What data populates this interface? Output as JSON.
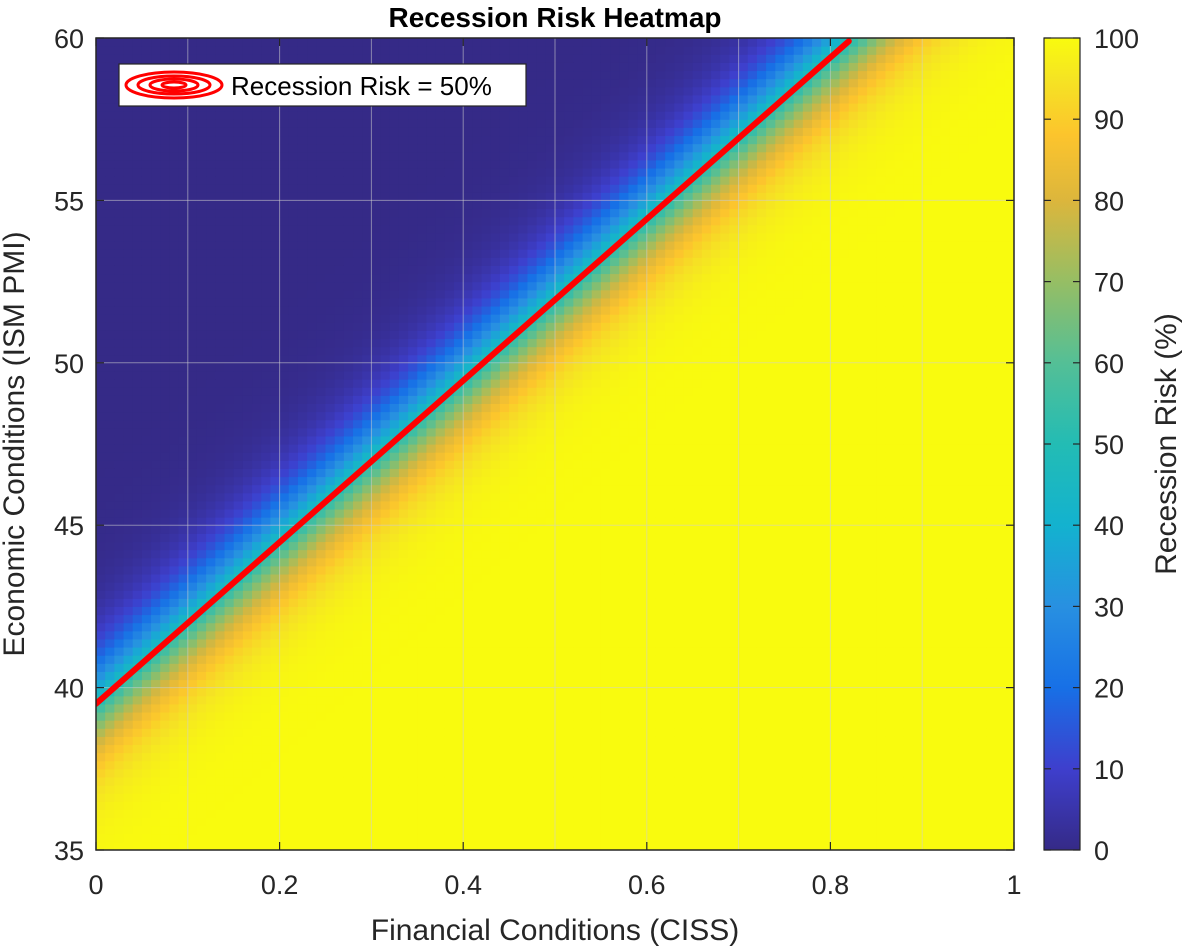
{
  "chart_data": {
    "type": "heatmap",
    "title": "Recession Risk Heatmap",
    "xlabel": "Financial Conditions (CISS)",
    "ylabel": "Economic Conditions (ISM PMI)",
    "xlim": [
      0,
      1
    ],
    "ylim": [
      35,
      60
    ],
    "xticks": [
      0,
      0.2,
      0.4,
      0.6,
      0.8,
      1
    ],
    "xtick_labels": [
      "0",
      "0.2",
      "0.4",
      "0.6",
      "0.8",
      "1"
    ],
    "yticks": [
      35,
      40,
      45,
      50,
      55,
      60
    ],
    "ytick_labels": [
      "35",
      "40",
      "45",
      "50",
      "55",
      "60"
    ],
    "grid": true,
    "grid_x": [
      0,
      0.1,
      0.2,
      0.3,
      0.4,
      0.5,
      0.6,
      0.7,
      0.8,
      0.9,
      1
    ],
    "grid_y": [
      35,
      40,
      45,
      50,
      55,
      60
    ],
    "colorbar": {
      "label": "Recession Risk (%)",
      "range": [
        0,
        100
      ],
      "ticks": [
        0,
        10,
        20,
        30,
        40,
        50,
        60,
        70,
        80,
        90,
        100
      ],
      "tick_labels": [
        "0",
        "10",
        "20",
        "30",
        "40",
        "50",
        "60",
        "70",
        "80",
        "90",
        "100"
      ],
      "colormap": "parula"
    },
    "risk_model": {
      "description_visible": false,
      "fifty_percent_boundary": {
        "x": [
          0,
          0.82
        ],
        "y": [
          39.5,
          59.9
        ]
      },
      "transition_width_pmi": 4.2
    },
    "series": [
      {
        "name": "Recession Risk = 50%",
        "type": "contour-line",
        "color": "#ff0000",
        "x": [
          0,
          0.82
        ],
        "y": [
          39.5,
          59.9
        ]
      }
    ],
    "legend": {
      "position": "top-left",
      "entries": [
        "Recession Risk = 50%"
      ]
    }
  }
}
